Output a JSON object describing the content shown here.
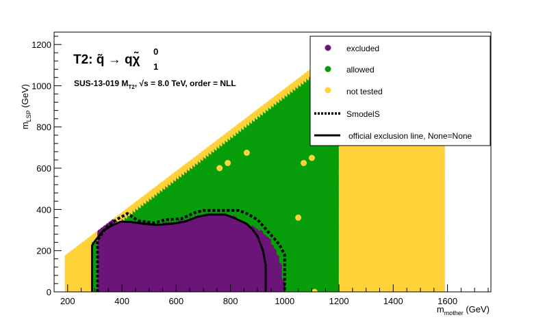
{
  "chart_data": {
    "type": "scatter",
    "title_main": "T2: ",
    "title_process": "q̃ → qχ̃",
    "title_sup": "0",
    "title_sub": "1",
    "subtitle_a": "SUS-13-019  M",
    "subtitle_sub": "T2",
    "subtitle_b": ",  √s =  8.0 TeV, order =  NLL",
    "xlabel": "m",
    "xlabel_sub": "mother",
    "xlabel_unit": " (GeV)",
    "ylabel": "m",
    "ylabel_sub": "LSP",
    "ylabel_unit": " (GeV)",
    "xlim": [
      150,
      1760
    ],
    "ylim": [
      0,
      1260
    ],
    "x_ticks": [
      200,
      400,
      600,
      800,
      1000,
      1200,
      1400,
      1600
    ],
    "y_ticks": [
      0,
      200,
      400,
      600,
      800,
      1000,
      1200
    ],
    "grid": "off",
    "legend_position": "top-right",
    "colors": {
      "excluded": "#6b1579",
      "allowed": "#089d0b",
      "not_tested": "#ffd23a",
      "line": "#000000"
    },
    "legend": [
      {
        "label": "excluded",
        "kind": "marker",
        "color": "#6b1579"
      },
      {
        "label": "allowed",
        "kind": "marker",
        "color": "#089d0b"
      },
      {
        "label": "not tested",
        "kind": "marker",
        "color": "#ffd23a"
      },
      {
        "label": "SmodelS",
        "kind": "dotted-line"
      },
      {
        "label": "official exclusion line, None=None",
        "kind": "solid-line"
      }
    ],
    "grid_points": {
      "x_range": [
        200,
        1580
      ],
      "x_step": 10,
      "y_step": 10,
      "triangle_upper_edge": "y = x - 25",
      "tested_x_range": [
        300,
        1200
      ],
      "untested_y_max_beyond_tested": 700,
      "excluded_region_x_y_max": [
        [
          310,
          0
        ],
        [
          320,
          320
        ],
        [
          350,
          330
        ],
        [
          380,
          345
        ],
        [
          410,
          350
        ],
        [
          440,
          345
        ],
        [
          470,
          340
        ],
        [
          500,
          340
        ],
        [
          530,
          335
        ],
        [
          560,
          340
        ],
        [
          600,
          345
        ],
        [
          640,
          355
        ],
        [
          680,
          370
        ],
        [
          720,
          380
        ],
        [
          760,
          385
        ],
        [
          790,
          380
        ],
        [
          820,
          370
        ],
        [
          860,
          340
        ],
        [
          890,
          320
        ],
        [
          920,
          300
        ],
        [
          950,
          260
        ],
        [
          975,
          200
        ],
        [
          990,
          140
        ],
        [
          1000,
          60
        ],
        [
          1000,
          0
        ]
      ],
      "stray_points": [
        {
          "x": 760,
          "y": 600,
          "status": "not_tested"
        },
        {
          "x": 790,
          "y": 625,
          "status": "not_tested"
        },
        {
          "x": 860,
          "y": 675,
          "status": "not_tested"
        },
        {
          "x": 1070,
          "y": 625,
          "status": "not_tested"
        },
        {
          "x": 1100,
          "y": 650,
          "status": "not_tested"
        },
        {
          "x": 1050,
          "y": 360,
          "status": "not_tested"
        },
        {
          "x": 1110,
          "y": 0,
          "status": "not_tested"
        }
      ]
    },
    "smodels_line": [
      [
        310,
        0
      ],
      [
        310,
        250
      ],
      [
        340,
        310
      ],
      [
        380,
        350
      ],
      [
        420,
        380
      ],
      [
        460,
        345
      ],
      [
        520,
        335
      ],
      [
        560,
        350
      ],
      [
        620,
        355
      ],
      [
        670,
        385
      ],
      [
        700,
        395
      ],
      [
        760,
        395
      ],
      [
        830,
        395
      ],
      [
        860,
        380
      ],
      [
        900,
        350
      ],
      [
        940,
        290
      ],
      [
        980,
        230
      ],
      [
        1000,
        180
      ],
      [
        1000,
        0
      ]
    ],
    "official_line": [
      [
        290,
        0
      ],
      [
        290,
        225
      ],
      [
        300,
        245
      ],
      [
        330,
        295
      ],
      [
        360,
        320
      ],
      [
        395,
        340
      ],
      [
        430,
        340
      ],
      [
        480,
        330
      ],
      [
        530,
        325
      ],
      [
        580,
        330
      ],
      [
        630,
        340
      ],
      [
        680,
        365
      ],
      [
        720,
        375
      ],
      [
        780,
        375
      ],
      [
        820,
        355
      ],
      [
        860,
        330
      ],
      [
        880,
        305
      ],
      [
        900,
        270
      ],
      [
        920,
        200
      ],
      [
        930,
        130
      ],
      [
        930,
        0
      ]
    ]
  }
}
